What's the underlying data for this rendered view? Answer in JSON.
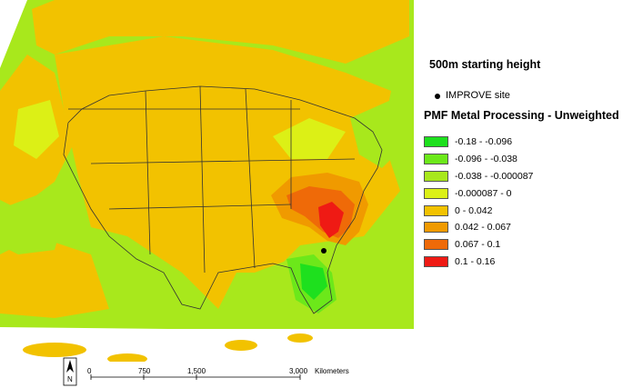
{
  "legend": {
    "title": "500m starting height",
    "site_label": "IMPROVE site",
    "subtitle": "PMF Metal Processing - Unweighted",
    "classes": [
      {
        "label": "-0.18 - -0.096",
        "color": "#1ee01e"
      },
      {
        "label": "-0.096 - -0.038",
        "color": "#6ce81a"
      },
      {
        "label": "-0.038 - -0.000087",
        "color": "#a8e81c"
      },
      {
        "label": "-0.000087 - 0",
        "color": "#dcf016"
      },
      {
        "label": "0 - 0.042",
        "color": "#f2c200"
      },
      {
        "label": "0.042 - 0.067",
        "color": "#f09a00"
      },
      {
        "label": "0.067 - 0.1",
        "color": "#ef6a08"
      },
      {
        "label": "0.1 - 0.16",
        "color": "#ef1a14"
      }
    ]
  },
  "scale_bar": {
    "ticks": [
      "0",
      "750",
      "1,500",
      "3,000"
    ],
    "unit": "Kilometers"
  },
  "north_arrow": {
    "label": "N"
  }
}
